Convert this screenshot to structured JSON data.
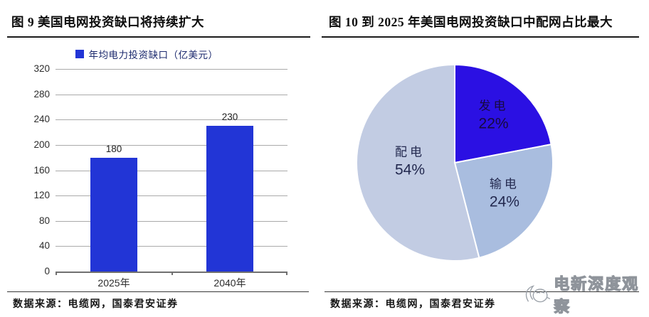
{
  "figure9": {
    "title": "图 9 美国电网投资缺口将持续扩大",
    "source": "数据来源：电缆网，国泰君安证券"
  },
  "figure10": {
    "title": "图 10 到 2025 年美国电网投资缺口中配网占比最大",
    "source": "数据来源：电缆网，国泰君安证券",
    "watermark": "电新深度观察"
  },
  "chart_data": [
    {
      "type": "bar",
      "title": "图 9 美国电网投资缺口将持续扩大",
      "legend": [
        "年均电力投资缺口（亿美元）"
      ],
      "categories": [
        "2025年",
        "2040年"
      ],
      "values": [
        180,
        230
      ],
      "value_labels": [
        "180",
        "230"
      ],
      "xlabel": "",
      "ylabel": "",
      "ylim": [
        0,
        320
      ],
      "yticks": [
        0,
        40,
        80,
        120,
        160,
        200,
        240,
        280,
        320
      ],
      "grid": true,
      "legend_position": "top",
      "bar_color": "#2235d6",
      "gridline_color": "#aaaaaa",
      "source": "数据来源：电缆网，国泰君安证券"
    },
    {
      "type": "pie",
      "title": "图 10 到 2025 年美国电网投资缺口中配网占比最大",
      "start_angle": "12-oclock",
      "direction": "clockwise",
      "border_color": "#ffffff",
      "slices": [
        {
          "label": "发电",
          "value": 22,
          "pct_text": "22%",
          "color": "#2b10e3",
          "label_color": "#17093f"
        },
        {
          "label": "输电",
          "value": 24,
          "pct_text": "24%",
          "color": "#a9bddf",
          "label_color": "#23294f"
        },
        {
          "label": "配电",
          "value": 54,
          "pct_text": "54%",
          "color": "#c2cce3",
          "label_color": "#23294f"
        }
      ],
      "source": "数据来源：电缆网，国泰君安证券",
      "watermark": "电新深度观察"
    }
  ]
}
